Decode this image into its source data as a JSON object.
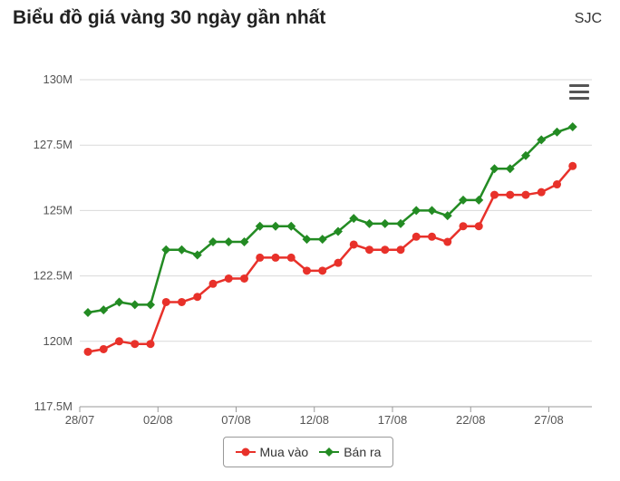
{
  "header": {
    "title": "Biểu đồ giá vàng 30 ngày gần nhất",
    "brand": "SJC"
  },
  "icons": {
    "menu": "hamburger-menu-icon"
  },
  "colors": {
    "mua": "#e8312a",
    "ban": "#238b23",
    "grid": "#d9d9d9",
    "axis": "#999999",
    "text": "#555555"
  },
  "chart_data": {
    "type": "line",
    "title": "Biểu đồ giá vàng 30 ngày gần nhất",
    "x_tick_labels": [
      "28/07",
      "02/08",
      "07/08",
      "12/08",
      "17/08",
      "22/08",
      "27/08"
    ],
    "x_tick_index": [
      0,
      5,
      10,
      15,
      20,
      25,
      30
    ],
    "y_ticks": [
      117.5,
      120,
      122.5,
      125,
      127.5,
      130
    ],
    "y_tick_labels": [
      "117.5M",
      "120M",
      "122.5M",
      "125M",
      "127.5M",
      "130M"
    ],
    "ylim": [
      117.5,
      130
    ],
    "y_unit": "M",
    "grid": true,
    "legend_position": "bottom-center",
    "series": [
      {
        "name": "Mua vào",
        "marker": "circle",
        "values": [
          119.6,
          119.7,
          120.0,
          119.9,
          119.9,
          121.5,
          121.5,
          121.7,
          122.2,
          122.4,
          122.4,
          123.2,
          123.2,
          123.2,
          122.7,
          122.7,
          123.0,
          123.7,
          123.5,
          123.5,
          123.5,
          124.0,
          124.0,
          123.8,
          124.4,
          124.4,
          125.6,
          125.6,
          125.6,
          125.7,
          126.0,
          126.7
        ]
      },
      {
        "name": "Bán ra",
        "marker": "diamond",
        "values": [
          121.1,
          121.2,
          121.5,
          121.4,
          121.4,
          123.5,
          123.5,
          123.3,
          123.8,
          123.8,
          123.8,
          124.4,
          124.4,
          124.4,
          123.9,
          123.9,
          124.2,
          124.7,
          124.5,
          124.5,
          124.5,
          125.0,
          125.0,
          124.8,
          125.4,
          125.4,
          126.6,
          126.6,
          127.1,
          127.7,
          128.0,
          128.2
        ]
      }
    ]
  }
}
